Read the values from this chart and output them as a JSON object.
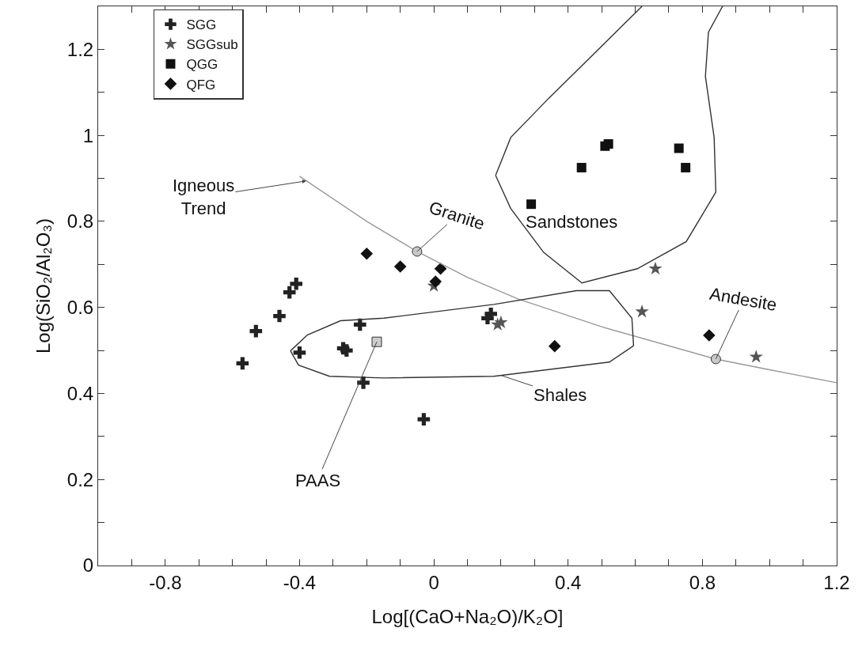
{
  "chart_data": {
    "type": "scatter",
    "xlabel": "Log[(CaO+Na₂O)/K₂O]",
    "ylabel": "Log(SiO₂/Al₂O₃)",
    "xlim": [
      -1,
      1.2
    ],
    "ylim": [
      0,
      1.3
    ],
    "xticks": [
      {
        "value": -1,
        "label": null
      },
      {
        "value": -0.9,
        "label": null
      },
      -0.8,
      {
        "value": -0.7,
        "label": null
      },
      {
        "value": -0.6,
        "label": null
      },
      {
        "value": -0.5,
        "label": null
      },
      -0.4,
      {
        "value": -0.3,
        "label": null
      },
      {
        "value": -0.2,
        "label": null
      },
      {
        "value": -0.1,
        "label": null
      },
      0,
      {
        "value": 0.1,
        "label": null
      },
      {
        "value": 0.2,
        "label": null
      },
      {
        "value": 0.3,
        "label": null
      },
      0.4,
      {
        "value": 0.5,
        "label": null
      },
      {
        "value": 0.6,
        "label": null
      },
      {
        "value": 0.7,
        "label": null
      },
      0.8,
      {
        "value": 0.9,
        "label": null
      },
      {
        "value": 1,
        "label": null
      },
      {
        "value": 1.1,
        "label": null
      },
      1.2
    ],
    "yticks": [
      0,
      {
        "value": 0.1,
        "label": null
      },
      0.2,
      {
        "value": 0.3,
        "label": null
      },
      0.4,
      {
        "value": 0.5,
        "label": null
      },
      0.6,
      {
        "value": 0.7,
        "label": null
      },
      0.8,
      {
        "value": 0.9,
        "label": null
      },
      1,
      {
        "value": 1.1,
        "label": null
      },
      1.2
    ],
    "grid": false,
    "legend": "top left",
    "series": [
      {
        "name": "SGG",
        "color": "#222222",
        "marker": "cross",
        "x": [
          -0.57,
          -0.53,
          -0.46,
          -0.43,
          -0.41,
          -0.4,
          -0.27,
          -0.26,
          -0.22,
          -0.21,
          -0.03,
          0.16,
          0.17
        ],
        "values": [
          0.47,
          0.545,
          0.58,
          0.635,
          0.655,
          0.495,
          0.505,
          0.5,
          0.56,
          0.425,
          0.34,
          0.575,
          0.585
        ]
      },
      {
        "name": "SGGsub",
        "color": "#555555",
        "marker": "star",
        "x": [
          0,
          0.19,
          0.2,
          0.62,
          0.66,
          0.96
        ],
        "values": [
          0.65,
          0.56,
          0.565,
          0.59,
          0.69,
          0.485
        ]
      },
      {
        "name": "QGG",
        "color": "#111111",
        "marker": "square",
        "x": [
          0.29,
          0.44,
          0.51,
          0.52,
          0.73,
          0.75
        ],
        "values": [
          0.84,
          0.925,
          0.975,
          0.98,
          0.97,
          0.925
        ]
      },
      {
        "name": "QFG",
        "color": "#111111",
        "marker": "diamond",
        "x": [
          -0.2,
          -0.1,
          0.005,
          0.02,
          0.36,
          0.82
        ],
        "values": [
          0.725,
          0.695,
          0.66,
          0.69,
          0.51,
          0.535
        ]
      },
      {
        "type": "line",
        "color": "#999999",
        "marker": "none",
        "x": [
          -0.4,
          -0.2,
          -0.05,
          0.1,
          0.25,
          0.5,
          0.84,
          1.0,
          1.2
        ],
        "values": [
          0.905,
          0.8,
          0.73,
          0.67,
          0.62,
          0.555,
          0.48,
          0.455,
          0.425
        ]
      },
      {
        "type": "line",
        "color": "#333333",
        "marker": "none",
        "x": [
          0.184,
          0.229,
          0.342,
          0.62
        ],
        "values": [
          0.907,
          0.995,
          1.086,
          1.3
        ]
      },
      {
        "type": "line",
        "color": "#333333",
        "marker": "none",
        "x": [
          0.184,
          0.229,
          0.327,
          0.441,
          0.606,
          0.752,
          0.84
        ],
        "values": [
          0.907,
          0.83,
          0.728,
          0.657,
          0.69,
          0.753,
          0.868
        ]
      },
      {
        "type": "line",
        "color": "#333333",
        "marker": "none",
        "x": [
          0.84,
          0.835,
          0.809,
          0.818,
          0.86
        ],
        "values": [
          0.868,
          0.995,
          1.137,
          1.24,
          1.3
        ]
      },
      {
        "type": "line",
        "color": "#333333",
        "marker": "none",
        "x": [
          -0.427,
          -0.377,
          -0.278,
          -0.149,
          0.179,
          0.425,
          0.523,
          0.59,
          0.595
        ],
        "values": [
          0.499,
          0.536,
          0.569,
          0.575,
          0.607,
          0.639,
          0.639,
          0.575,
          0.511
        ]
      },
      {
        "type": "line",
        "color": "#333333",
        "marker": "none",
        "x": [
          -0.427,
          -0.403,
          -0.311,
          -0.149,
          0.179,
          0.523,
          0.595
        ],
        "values": [
          0.499,
          0.466,
          0.44,
          0.436,
          0.44,
          0.473,
          0.511
        ]
      },
      {
        "color": "#c8c8c8",
        "marker": "circle",
        "x": [
          -0.05,
          0.84
        ],
        "values": [
          0.73,
          0.48
        ]
      },
      {
        "color": "#cccccc",
        "marker": "square",
        "x": [
          -0.17
        ],
        "values": [
          0.52
        ]
      }
    ],
    "annotations": [
      {
        "text": "Igneous\nTrend",
        "x": -0.38,
        "y": 0.894
      },
      {
        "text": "Granite",
        "x": -0.05,
        "y": 0.73
      },
      {
        "text": "Andesite",
        "x": 0.84,
        "y": 0.48
      },
      {
        "text": "PAAS",
        "x": -0.17,
        "y": 0.52
      },
      {
        "text": "Shales",
        "x": 0.2,
        "y": 0.442
      },
      "Sandstones"
    ]
  }
}
